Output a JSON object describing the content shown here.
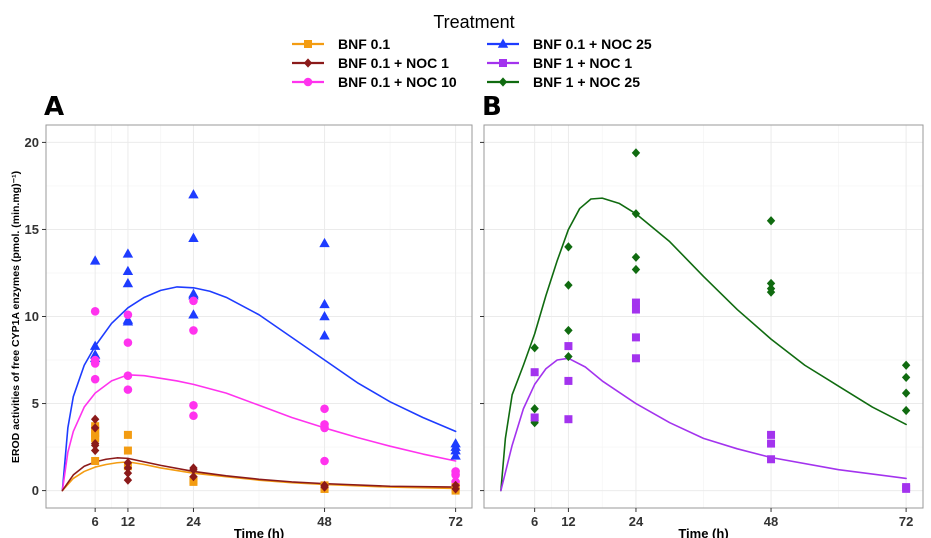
{
  "legend": {
    "title": "Treatment",
    "items": [
      {
        "label": "BNF 0.1",
        "color": "#f39c12",
        "shape": "square"
      },
      {
        "label": "BNF 0.1 + NOC 1",
        "color": "#8b1a1a",
        "shape": "diamond"
      },
      {
        "label": "BNF 0.1 + NOC 10",
        "color": "#ff33ee",
        "shape": "circle"
      },
      {
        "label": "BNF 0.1 + NOC 25",
        "color": "#1e3cff",
        "shape": "triangle"
      },
      {
        "label": "BNF 1 + NOC 1",
        "color": "#a333ee",
        "shape": "square"
      },
      {
        "label": "BNF 1 + NOC 25",
        "color": "#106b10",
        "shape": "diamond"
      }
    ]
  },
  "y_axis_title": "EROD activities of free CYP1A enzymes (pmol. (min.mg)⁻¹)",
  "chart_data": [
    {
      "panel": "A",
      "type": "scatter",
      "xlabel": "Time (h)",
      "ylabel": "EROD activities of free CYP1A enzymes (pmol. (min.mg)⁻¹)",
      "xlim": [
        -3,
        75
      ],
      "ylim": [
        -1,
        21
      ],
      "xticks": [
        6,
        12,
        24,
        48,
        72
      ],
      "yticks": [
        0,
        5,
        10,
        15,
        20
      ],
      "grid": true,
      "series": [
        {
          "name": "BNF 0.1 + NOC 25",
          "points": [
            [
              6,
              13.2
            ],
            [
              6,
              8.3
            ],
            [
              6,
              7.8
            ],
            [
              6,
              7.6
            ],
            [
              12,
              13.6
            ],
            [
              12,
              12.6
            ],
            [
              12,
              11.9
            ],
            [
              12,
              9.8
            ],
            [
              12,
              9.7
            ],
            [
              24,
              17.0
            ],
            [
              24,
              14.5
            ],
            [
              24,
              11.3
            ],
            [
              24,
              11.2
            ],
            [
              24,
              10.1
            ],
            [
              48,
              14.2
            ],
            [
              48,
              10.7
            ],
            [
              48,
              10.0
            ],
            [
              48,
              8.9
            ],
            [
              72,
              2.7
            ],
            [
              72,
              2.5
            ],
            [
              72,
              2.3
            ],
            [
              72,
              2.0
            ]
          ],
          "curve": [
            [
              0,
              0
            ],
            [
              1,
              3.6
            ],
            [
              2,
              5.4
            ],
            [
              4,
              7.2
            ],
            [
              6,
              8.3
            ],
            [
              9,
              9.6
            ],
            [
              12,
              10.5
            ],
            [
              15,
              11.1
            ],
            [
              18,
              11.5
            ],
            [
              21,
              11.7
            ],
            [
              24,
              11.65
            ],
            [
              27,
              11.45
            ],
            [
              30,
              11.1
            ],
            [
              36,
              10.1
            ],
            [
              42,
              8.8
            ],
            [
              48,
              7.5
            ],
            [
              54,
              6.2
            ],
            [
              60,
              5.1
            ],
            [
              66,
              4.2
            ],
            [
              72,
              3.4
            ]
          ]
        },
        {
          "name": "BNF 0.1 + NOC 10",
          "points": [
            [
              6,
              10.3
            ],
            [
              6,
              7.5
            ],
            [
              6,
              7.3
            ],
            [
              6,
              6.4
            ],
            [
              12,
              10.1
            ],
            [
              12,
              8.5
            ],
            [
              12,
              6.6
            ],
            [
              12,
              5.8
            ],
            [
              24,
              10.9
            ],
            [
              24,
              9.2
            ],
            [
              24,
              4.9
            ],
            [
              24,
              4.3
            ],
            [
              48,
              4.7
            ],
            [
              48,
              3.8
            ],
            [
              48,
              3.6
            ],
            [
              48,
              1.7
            ],
            [
              72,
              1.1
            ],
            [
              72,
              0.9
            ],
            [
              72,
              0.5
            ],
            [
              72,
              0.3
            ]
          ],
          "curve": [
            [
              0,
              0
            ],
            [
              1,
              2.2
            ],
            [
              2,
              3.4
            ],
            [
              4,
              4.8
            ],
            [
              6,
              5.6
            ],
            [
              9,
              6.3
            ],
            [
              12,
              6.65
            ],
            [
              15,
              6.6
            ],
            [
              18,
              6.45
            ],
            [
              21,
              6.3
            ],
            [
              24,
              6.1
            ],
            [
              30,
              5.6
            ],
            [
              36,
              4.9
            ],
            [
              42,
              4.2
            ],
            [
              48,
              3.6
            ],
            [
              54,
              3.05
            ],
            [
              60,
              2.55
            ],
            [
              66,
              2.1
            ],
            [
              72,
              1.7
            ]
          ]
        },
        {
          "name": "BNF 0.1",
          "points": [
            [
              6,
              3.7
            ],
            [
              6,
              3.5
            ],
            [
              6,
              3.3
            ],
            [
              6,
              3.1
            ],
            [
              6,
              3.0
            ],
            [
              6,
              1.7
            ],
            [
              12,
              3.2
            ],
            [
              12,
              2.3
            ],
            [
              12,
              1.4
            ],
            [
              24,
              0.6
            ],
            [
              24,
              0.5
            ],
            [
              48,
              0.3
            ],
            [
              48,
              0.1
            ],
            [
              48,
              0.1
            ],
            [
              72,
              0.2
            ],
            [
              72,
              0.1
            ],
            [
              72,
              0.0
            ]
          ],
          "curve": [
            [
              0,
              0
            ],
            [
              2,
              0.7
            ],
            [
              4,
              1.1
            ],
            [
              6,
              1.35
            ],
            [
              8,
              1.5
            ],
            [
              10,
              1.6
            ],
            [
              12,
              1.65
            ],
            [
              15,
              1.5
            ],
            [
              18,
              1.3
            ],
            [
              24,
              1.0
            ],
            [
              30,
              0.8
            ],
            [
              36,
              0.6
            ],
            [
              42,
              0.45
            ],
            [
              48,
              0.35
            ],
            [
              60,
              0.2
            ],
            [
              72,
              0.12
            ]
          ]
        },
        {
          "name": "BNF 0.1 + NOC 1",
          "points": [
            [
              6,
              4.1
            ],
            [
              6,
              3.6
            ],
            [
              6,
              2.7
            ],
            [
              6,
              2.6
            ],
            [
              6,
              2.3
            ],
            [
              12,
              1.6
            ],
            [
              12,
              1.3
            ],
            [
              12,
              1.0
            ],
            [
              12,
              0.6
            ],
            [
              24,
              1.3
            ],
            [
              24,
              1.2
            ],
            [
              24,
              0.8
            ],
            [
              48,
              0.3
            ],
            [
              48,
              0.2
            ],
            [
              72,
              0.3
            ],
            [
              72,
              0.1
            ]
          ],
          "curve": [
            [
              0,
              0
            ],
            [
              2,
              0.9
            ],
            [
              4,
              1.4
            ],
            [
              6,
              1.65
            ],
            [
              8,
              1.8
            ],
            [
              10,
              1.88
            ],
            [
              12,
              1.85
            ],
            [
              15,
              1.65
            ],
            [
              18,
              1.45
            ],
            [
              24,
              1.1
            ],
            [
              30,
              0.85
            ],
            [
              36,
              0.65
            ],
            [
              42,
              0.5
            ],
            [
              48,
              0.4
            ],
            [
              60,
              0.25
            ],
            [
              72,
              0.2
            ]
          ]
        }
      ]
    },
    {
      "panel": "B",
      "type": "scatter",
      "xlabel": "Time (h)",
      "ylabel": "",
      "xlim": [
        -3,
        75
      ],
      "ylim": [
        -1,
        21
      ],
      "xticks": [
        6,
        12,
        24,
        48,
        72
      ],
      "yticks": [
        0,
        5,
        10,
        15,
        20
      ],
      "grid": true,
      "series": [
        {
          "name": "BNF 1 + NOC 25",
          "points": [
            [
              6,
              8.2
            ],
            [
              6,
              4.7
            ],
            [
              6,
              4.0
            ],
            [
              6,
              3.9
            ],
            [
              12,
              14.0
            ],
            [
              12,
              11.8
            ],
            [
              12,
              9.2
            ],
            [
              12,
              7.7
            ],
            [
              24,
              19.4
            ],
            [
              24,
              15.9
            ],
            [
              24,
              13.4
            ],
            [
              24,
              12.7
            ],
            [
              48,
              15.5
            ],
            [
              48,
              11.9
            ],
            [
              48,
              11.6
            ],
            [
              48,
              11.4
            ],
            [
              72,
              7.2
            ],
            [
              72,
              6.5
            ],
            [
              72,
              5.6
            ],
            [
              72,
              4.6
            ]
          ],
          "curve": [
            [
              0,
              0
            ],
            [
              0.8,
              3.0
            ],
            [
              2,
              5.5
            ],
            [
              4,
              7.2
            ],
            [
              6,
              9.0
            ],
            [
              8,
              11.2
            ],
            [
              10,
              13.2
            ],
            [
              12,
              15.0
            ],
            [
              14,
              16.2
            ],
            [
              16,
              16.75
            ],
            [
              18,
              16.8
            ],
            [
              21,
              16.5
            ],
            [
              24,
              15.9
            ],
            [
              30,
              14.3
            ],
            [
              36,
              12.3
            ],
            [
              42,
              10.4
            ],
            [
              48,
              8.7
            ],
            [
              54,
              7.2
            ],
            [
              60,
              6.0
            ],
            [
              66,
              4.8
            ],
            [
              72,
              3.8
            ]
          ]
        },
        {
          "name": "BNF 1 + NOC 1",
          "points": [
            [
              6,
              6.8
            ],
            [
              6,
              4.2
            ],
            [
              12,
              8.3
            ],
            [
              12,
              6.3
            ],
            [
              12,
              4.1
            ],
            [
              24,
              10.8
            ],
            [
              24,
              10.4
            ],
            [
              24,
              8.8
            ],
            [
              24,
              7.6
            ],
            [
              48,
              3.2
            ],
            [
              48,
              2.7
            ],
            [
              48,
              1.8
            ],
            [
              72,
              0.2
            ],
            [
              72,
              0.1
            ]
          ],
          "curve": [
            [
              0,
              0
            ],
            [
              2,
              2.6
            ],
            [
              4,
              4.7
            ],
            [
              6,
              6.1
            ],
            [
              8,
              7.0
            ],
            [
              10,
              7.5
            ],
            [
              12,
              7.6
            ],
            [
              15,
              7.1
            ],
            [
              18,
              6.3
            ],
            [
              24,
              5.0
            ],
            [
              30,
              3.9
            ],
            [
              36,
              3.0
            ],
            [
              42,
              2.4
            ],
            [
              48,
              1.9
            ],
            [
              60,
              1.2
            ],
            [
              72,
              0.7
            ]
          ]
        }
      ]
    }
  ]
}
